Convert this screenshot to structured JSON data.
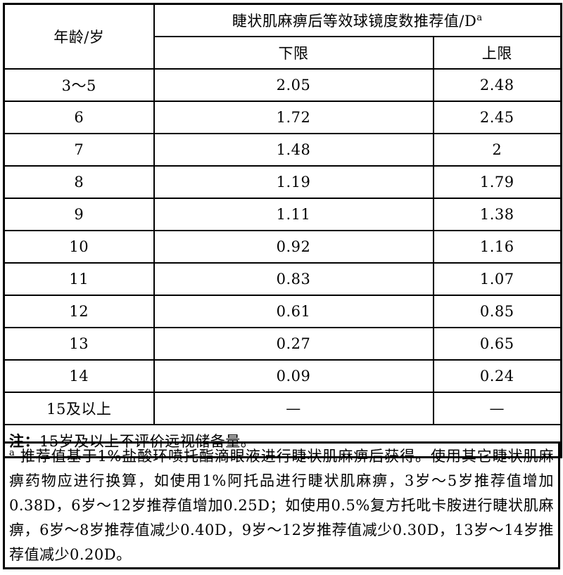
{
  "table": {
    "age_header": "年龄/岁",
    "value_header": "睫状肌麻痹后等效球镜度数推荐值/D",
    "value_header_sup": "a",
    "lower_header": "下限",
    "upper_header": "上限",
    "rows": [
      {
        "age": "3～5",
        "lower": "2.05",
        "upper": "2.48"
      },
      {
        "age": "6",
        "lower": "1.72",
        "upper": "2.45"
      },
      {
        "age": "7",
        "lower": "1.48",
        "upper": "2"
      },
      {
        "age": "8",
        "lower": "1.19",
        "upper": "1.79"
      },
      {
        "age": "9",
        "lower": "1.11",
        "upper": "1.38"
      },
      {
        "age": "10",
        "lower": "0.92",
        "upper": "1.16"
      },
      {
        "age": "11",
        "lower": "0.83",
        "upper": "1.07"
      },
      {
        "age": "12",
        "lower": "0.61",
        "upper": "0.85"
      },
      {
        "age": "13",
        "lower": "0.27",
        "upper": "0.65"
      },
      {
        "age": "14",
        "lower": "0.09",
        "upper": "0.24"
      },
      {
        "age": "15及以上",
        "lower": "—",
        "upper": "—"
      }
    ],
    "note_label": "注：",
    "note_text": "15岁及以上不评价远视储备量。"
  },
  "footnote": {
    "marker": "a",
    "text": "推荐值基于1%盐酸环喷托酯滴眼液进行睫状肌麻痹后获得。使用其它睫状肌麻痹药物应进行换算，如使用1%阿托品进行睫状肌麻痹，3岁～5岁推荐值增加0.38D，6岁～12岁推荐值增加0.25D；如使用0.5%复方托吡卡胺进行睫状肌麻痹，6岁～8岁推荐值减少0.40D，9岁～12岁推荐值减少0.30D，13岁～14岁推荐值减少0.20D。"
  }
}
